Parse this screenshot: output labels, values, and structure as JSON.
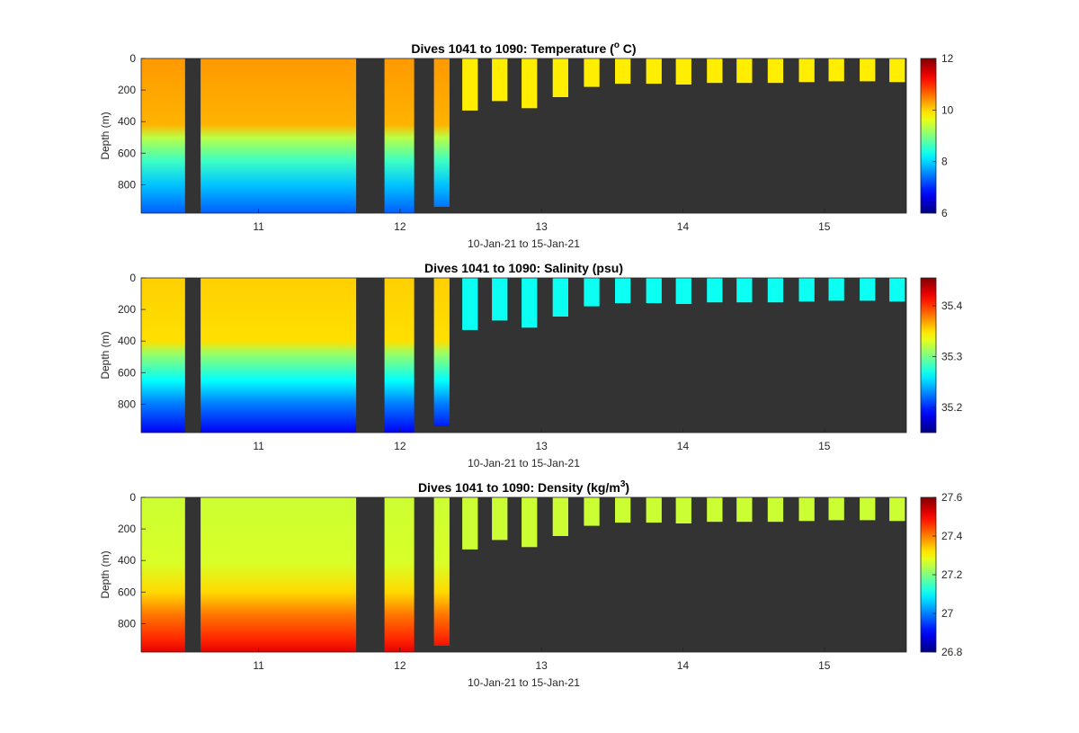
{
  "figure": {
    "date_range_label": "10-Jan-21 to 15-Jan-21",
    "background_color": "#ffffff",
    "no_data_color": "#333333"
  },
  "chart_data": [
    {
      "type": "heatmap",
      "title_prefix": "Dives 1041 to 1090: Temperature (",
      "title_superscript": "o",
      "title_suffix": " C)",
      "title_mid": "",
      "ylabel": "Depth (m)",
      "xlabel": "10-Jan-21 to 15-Jan-21",
      "x_ticks": [
        "11",
        "12",
        "13",
        "14",
        "15"
      ],
      "y_ticks": [
        "0",
        "200",
        "400",
        "600",
        "800"
      ],
      "ylim": [
        0,
        980
      ],
      "y_reversed": true,
      "colormap": "jet",
      "colorbar_range": [
        6,
        12
      ],
      "colorbar_ticks": [
        "6",
        "8",
        "10",
        "12"
      ],
      "color_stops": [
        {
          "depth": 0,
          "value": 10.35
        },
        {
          "depth": 420,
          "value": 10.2
        },
        {
          "depth": 500,
          "value": 9.35
        },
        {
          "depth": 650,
          "value": 8.6
        },
        {
          "depth": 800,
          "value": 7.9
        },
        {
          "depth": 980,
          "value": 7.3
        }
      ],
      "near_surface_late_value": 9.85
    },
    {
      "type": "heatmap",
      "title_prefix": "Dives 1041 to 1090: Salinity (psu)",
      "title_superscript": "",
      "title_suffix": "",
      "title_mid": "",
      "ylabel": "Depth (m)",
      "xlabel": "10-Jan-21 to 15-Jan-21",
      "x_ticks": [
        "11",
        "12",
        "13",
        "14",
        "15"
      ],
      "y_ticks": [
        "0",
        "200",
        "400",
        "600",
        "800"
      ],
      "ylim": [
        0,
        980
      ],
      "y_reversed": true,
      "colormap": "jet",
      "colorbar_range": [
        35.15,
        35.455
      ],
      "colorbar_ticks": [
        "35.2",
        "35.3",
        "35.4"
      ],
      "color_stops": [
        {
          "depth": 0,
          "value": 35.355
        },
        {
          "depth": 400,
          "value": 35.35
        },
        {
          "depth": 480,
          "value": 35.31
        },
        {
          "depth": 650,
          "value": 35.265
        },
        {
          "depth": 800,
          "value": 35.225
        },
        {
          "depth": 980,
          "value": 35.185
        }
      ],
      "near_surface_late_value": 35.268
    },
    {
      "type": "heatmap",
      "title_prefix": "Dives 1041 to 1090: Density (kg/m",
      "title_superscript": "3",
      "title_suffix": ")",
      "title_mid": "",
      "ylabel": "Depth (m)",
      "xlabel": "10-Jan-21 to 15-Jan-21",
      "x_ticks": [
        "11",
        "12",
        "13",
        "14",
        "15"
      ],
      "y_ticks": [
        "0",
        "200",
        "400",
        "600",
        "800"
      ],
      "ylim": [
        0,
        980
      ],
      "y_reversed": true,
      "colormap": "jet",
      "colorbar_range": [
        26.8,
        27.6
      ],
      "colorbar_ticks": [
        "26.8",
        "27",
        "27.2",
        "27.4",
        "27.6"
      ],
      "color_stops": [
        {
          "depth": 0,
          "value": 27.26
        },
        {
          "depth": 420,
          "value": 27.27
        },
        {
          "depth": 600,
          "value": 27.33
        },
        {
          "depth": 750,
          "value": 27.41
        },
        {
          "depth": 900,
          "value": 27.47
        },
        {
          "depth": 980,
          "value": 27.52
        }
      ],
      "near_surface_late_value": 27.26
    }
  ],
  "profile_columns": {
    "x_range_days": [
      10.17,
      15.58
    ],
    "columns": [
      {
        "start": 10.17,
        "end": 10.48,
        "max_depth": 980
      },
      {
        "start": 10.59,
        "end": 11.69,
        "max_depth": 980
      },
      {
        "start": 11.89,
        "end": 12.1,
        "max_depth": 980
      },
      {
        "start": 12.24,
        "end": 12.35,
        "max_depth": 940
      },
      {
        "start": 12.44,
        "end": 12.55,
        "max_depth": 330
      },
      {
        "start": 12.65,
        "end": 12.76,
        "max_depth": 270
      },
      {
        "start": 12.86,
        "end": 12.97,
        "max_depth": 315
      },
      {
        "start": 13.08,
        "end": 13.19,
        "max_depth": 245
      },
      {
        "start": 13.3,
        "end": 13.41,
        "max_depth": 180
      },
      {
        "start": 13.52,
        "end": 13.63,
        "max_depth": 160
      },
      {
        "start": 13.74,
        "end": 13.85,
        "max_depth": 160
      },
      {
        "start": 13.95,
        "end": 14.06,
        "max_depth": 165
      },
      {
        "start": 14.17,
        "end": 14.28,
        "max_depth": 155
      },
      {
        "start": 14.38,
        "end": 14.49,
        "max_depth": 155
      },
      {
        "start": 14.6,
        "end": 14.71,
        "max_depth": 155
      },
      {
        "start": 14.82,
        "end": 14.93,
        "max_depth": 150
      },
      {
        "start": 15.03,
        "end": 15.14,
        "max_depth": 145
      },
      {
        "start": 15.25,
        "end": 15.36,
        "max_depth": 145
      },
      {
        "start": 15.46,
        "end": 15.57,
        "max_depth": 150
      }
    ]
  }
}
